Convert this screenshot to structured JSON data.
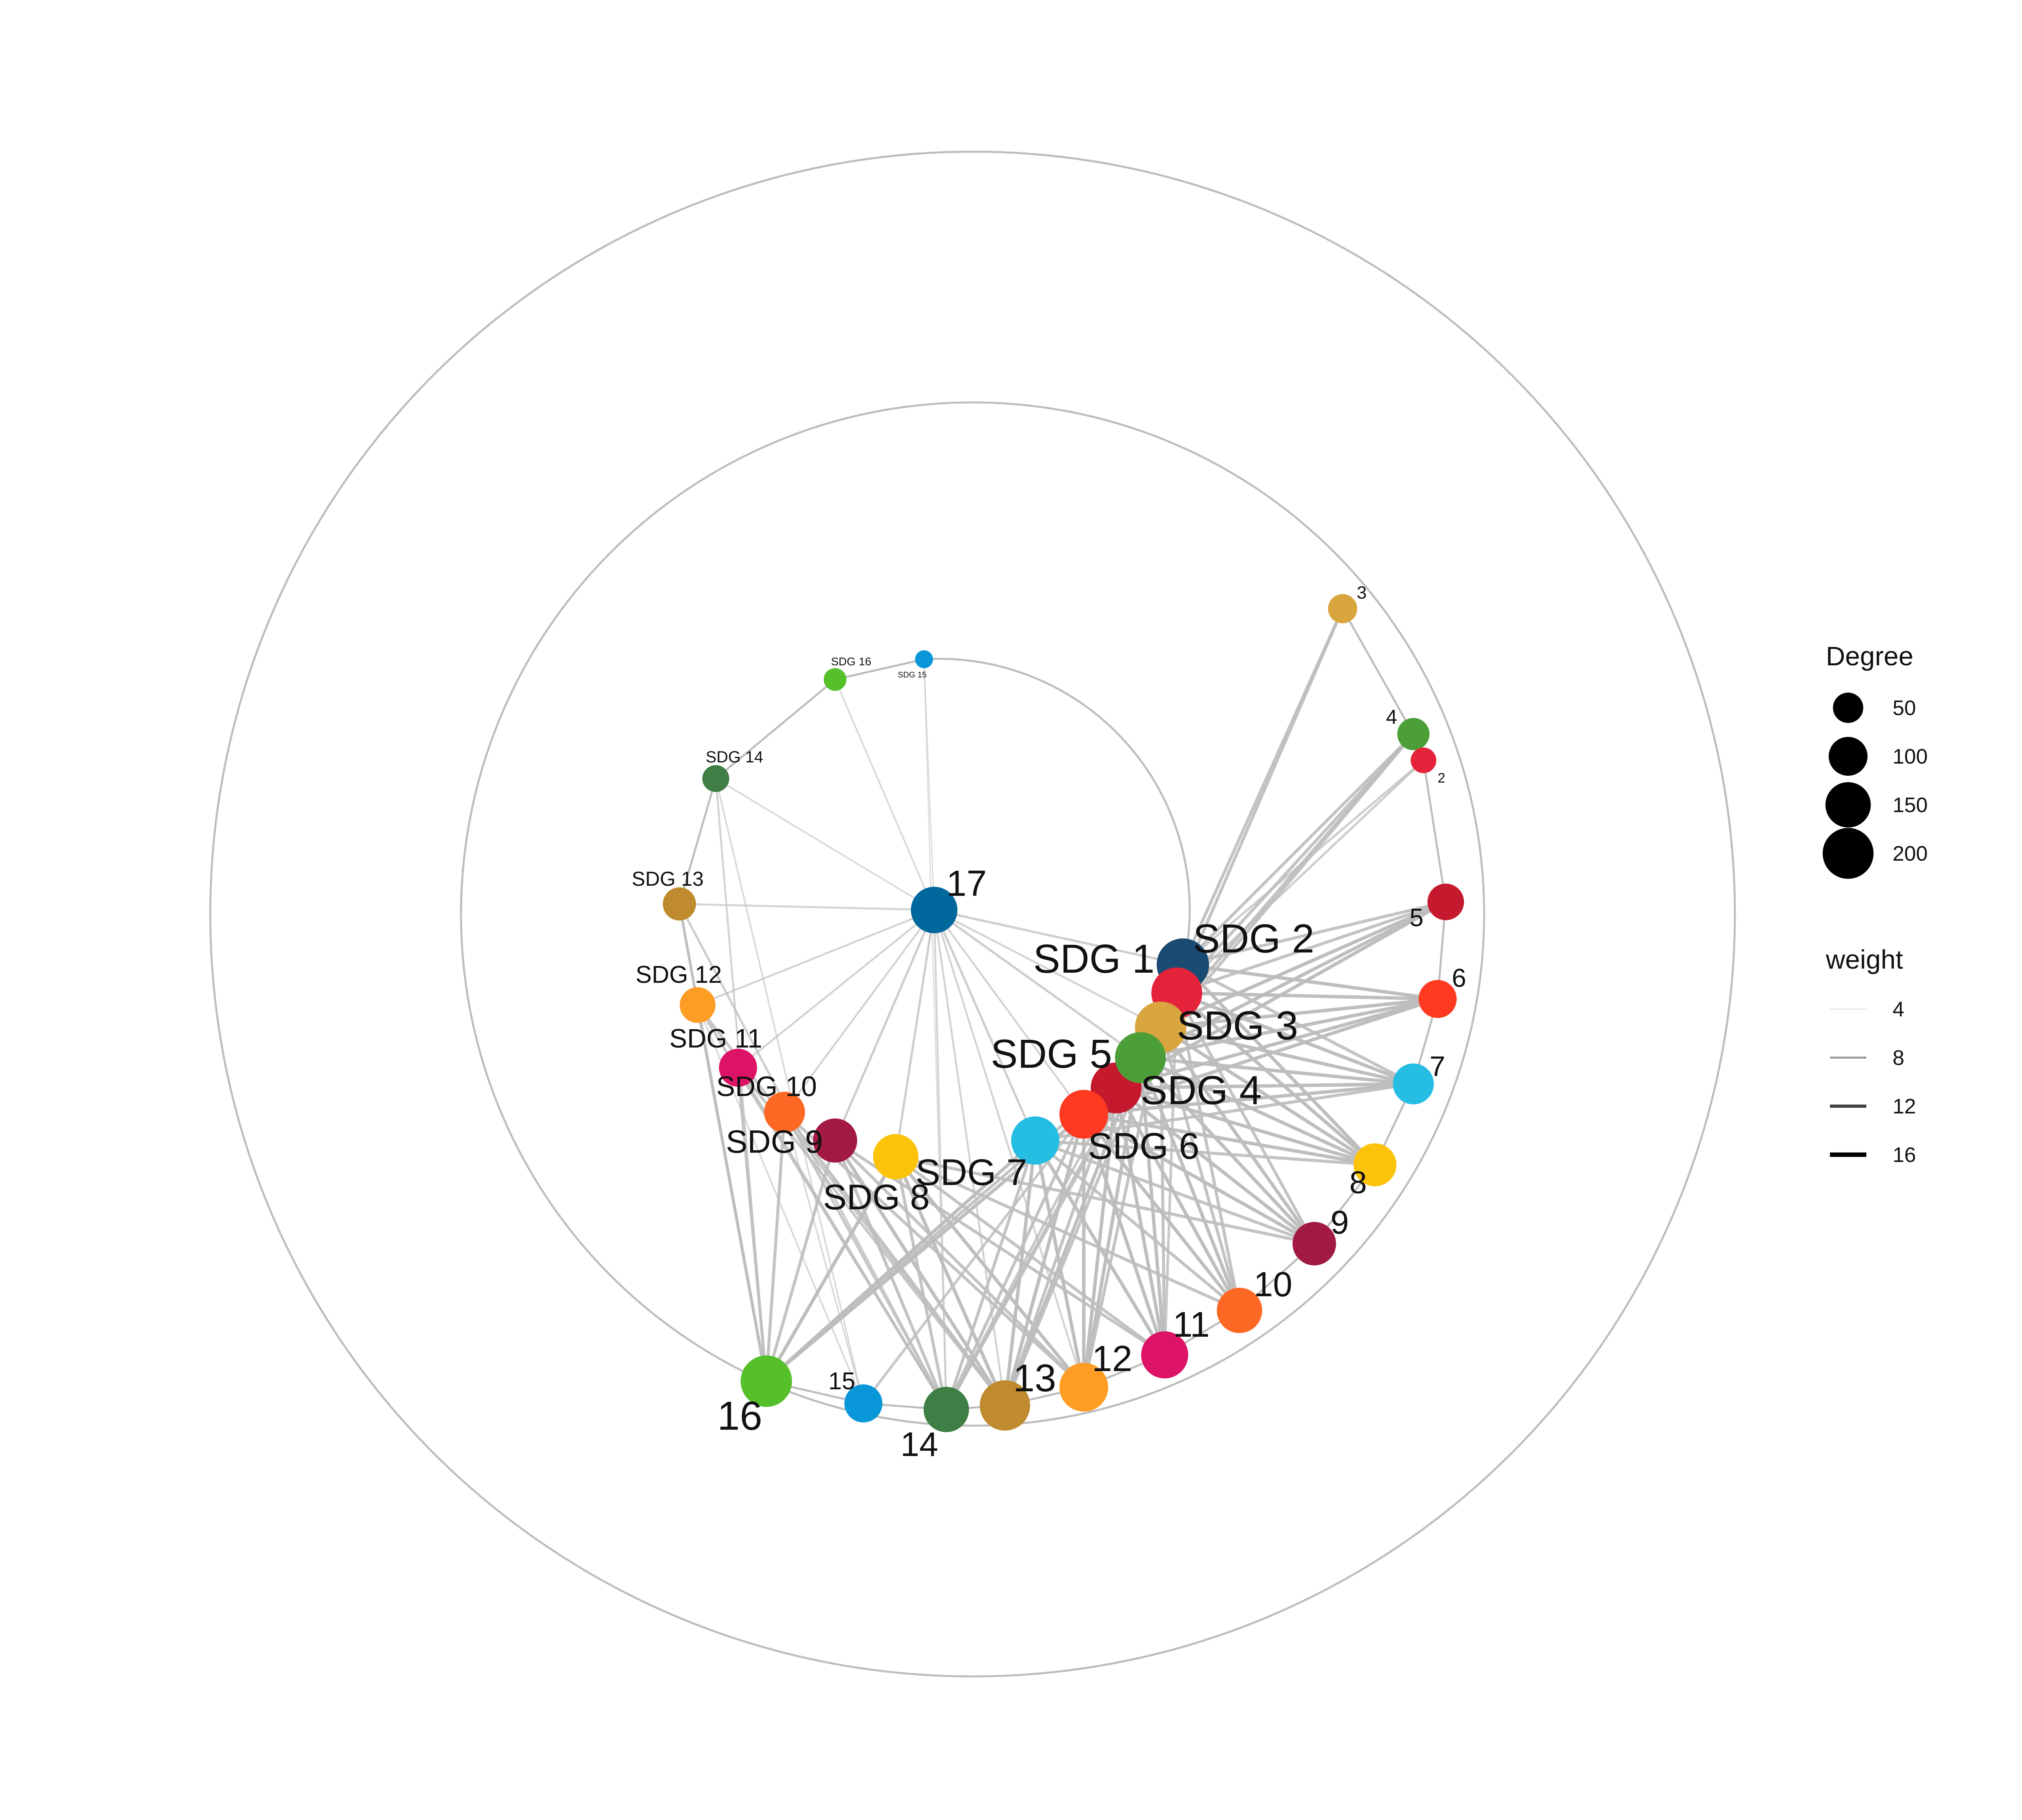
{
  "colors": {
    "edge": "#bdbdbd",
    "ring": "#bdbdbd",
    "background": "#ffffff"
  },
  "nodes": [
    {
      "id": "SDG 1",
      "label": "SDG 1",
      "color": "#1a4b73",
      "degree": 215
    },
    {
      "id": "SDG 2",
      "label": "SDG 2",
      "color": "#e5243b",
      "degree": 200
    },
    {
      "id": "SDG 3",
      "label": "SDG 3",
      "color": "#d9a53f",
      "degree": 205
    },
    {
      "id": "SDG 4",
      "label": "SDG 4",
      "color": "#c5192d",
      "degree": 200
    },
    {
      "id": "SDG 5",
      "label": "SDG 5",
      "color": "#4c9f38",
      "degree": 200
    },
    {
      "id": "SDG 6",
      "label": "SDG 6",
      "color": "#ff3a21",
      "degree": 180
    },
    {
      "id": "SDG 7",
      "label": "SDG 7",
      "color": "#26bde2",
      "degree": 175
    },
    {
      "id": "SDG 8",
      "label": "SDG 8",
      "color": "#fcc30b",
      "degree": 150
    },
    {
      "id": "SDG 9",
      "label": "SDG 9",
      "color": "#a21942",
      "degree": 140
    },
    {
      "id": "SDG 10",
      "label": "SDG 10",
      "color": "#fd6925",
      "degree": 115
    },
    {
      "id": "SDG 11",
      "label": "SDG 11",
      "color": "#dd1367",
      "degree": 95
    },
    {
      "id": "SDG 12",
      "label": "SDG 12",
      "color": "#fd9d24",
      "degree": 80
    },
    {
      "id": "SDG 13",
      "label": "SDG 13",
      "color": "#bf8b2e",
      "degree": 65
    },
    {
      "id": "SDG 14",
      "label": "SDG 14",
      "color": "#3f7e44",
      "degree": 35
    },
    {
      "id": "SDG 16",
      "label": "SDG 16",
      "color": "#56c02b",
      "degree": 20
    },
    {
      "id": "SDG 15",
      "label": "SDG 15",
      "color": "#0a97d9",
      "degree": 8
    },
    {
      "id": "T17",
      "label": "17",
      "color": "#00689d",
      "degree": 160
    },
    {
      "id": "T3",
      "label": "3",
      "color": "#d9a53f",
      "degree": 45
    },
    {
      "id": "T4",
      "label": "4",
      "color": "#4c9f38",
      "degree": 60
    },
    {
      "id": "T2",
      "label": "2",
      "color": "#e5243b",
      "degree": 30
    },
    {
      "id": "T5",
      "label": "5",
      "color": "#c5192d",
      "degree": 85
    },
    {
      "id": "T6",
      "label": "6",
      "color": "#ff3a21",
      "degree": 95
    },
    {
      "id": "T7",
      "label": "7",
      "color": "#26bde2",
      "degree": 115
    },
    {
      "id": "T8",
      "label": "8",
      "color": "#fcc30b",
      "degree": 130
    },
    {
      "id": "T9",
      "label": "9",
      "color": "#a21942",
      "degree": 135
    },
    {
      "id": "T10",
      "label": "10",
      "color": "#fd6925",
      "degree": 150
    },
    {
      "id": "T11",
      "label": "11",
      "color": "#dd1367",
      "degree": 165
    },
    {
      "id": "T12",
      "label": "12",
      "color": "#fd9d24",
      "degree": 180
    },
    {
      "id": "T13",
      "label": "13",
      "color": "#bf8b2e",
      "degree": 195
    },
    {
      "id": "T14",
      "label": "14",
      "color": "#3f7e44",
      "degree": 150
    },
    {
      "id": "T15",
      "label": "15",
      "color": "#0a97d9",
      "degree": 95
    },
    {
      "id": "T16",
      "label": "16",
      "color": "#56c02b",
      "degree": 205
    }
  ],
  "edges": [
    [
      "SDG 1",
      "T3",
      7
    ],
    [
      "SDG 1",
      "T4",
      7
    ],
    [
      "SDG 1",
      "T2",
      5
    ],
    [
      "SDG 1",
      "T5",
      7
    ],
    [
      "SDG 1",
      "T6",
      8
    ],
    [
      "SDG 1",
      "T7",
      7
    ],
    [
      "SDG 1",
      "T8",
      8
    ],
    [
      "SDG 1",
      "T17",
      5
    ],
    [
      "SDG 2",
      "T3",
      7
    ],
    [
      "SDG 2",
      "T4",
      7
    ],
    [
      "SDG 2",
      "T2",
      5
    ],
    [
      "SDG 2",
      "T5",
      7
    ],
    [
      "SDG 2",
      "T6",
      8
    ],
    [
      "SDG 2",
      "T7",
      8
    ],
    [
      "SDG 2",
      "T8",
      8
    ],
    [
      "SDG 2",
      "T9",
      7
    ],
    [
      "SDG 2",
      "T10",
      7
    ],
    [
      "SDG 2",
      "T11",
      6
    ],
    [
      "SDG 3",
      "T4",
      7
    ],
    [
      "SDG 3",
      "T5",
      8
    ],
    [
      "SDG 3",
      "T6",
      8
    ],
    [
      "SDG 3",
      "T7",
      8
    ],
    [
      "SDG 3",
      "T8",
      8
    ],
    [
      "SDG 3",
      "T9",
      8
    ],
    [
      "SDG 3",
      "T10",
      7
    ],
    [
      "SDG 3",
      "T11",
      7
    ],
    [
      "SDG 3",
      "T12",
      7
    ],
    [
      "SDG 3",
      "T13",
      7
    ],
    [
      "SDG 3",
      "T14",
      6
    ],
    [
      "SDG 4",
      "T4",
      7
    ],
    [
      "SDG 4",
      "T5",
      8
    ],
    [
      "SDG 4",
      "T6",
      8
    ],
    [
      "SDG 4",
      "T7",
      8
    ],
    [
      "SDG 4",
      "T8",
      8
    ],
    [
      "SDG 4",
      "T9",
      8
    ],
    [
      "SDG 4",
      "T10",
      8
    ],
    [
      "SDG 4",
      "T11",
      8
    ],
    [
      "SDG 4",
      "T12",
      8
    ],
    [
      "SDG 4",
      "T13",
      7
    ],
    [
      "SDG 4",
      "T14",
      6
    ],
    [
      "SDG 4",
      "T16",
      7
    ],
    [
      "SDG 5",
      "T5",
      8
    ],
    [
      "SDG 5",
      "T6",
      8
    ],
    [
      "SDG 5",
      "T7",
      8
    ],
    [
      "SDG 5",
      "T8",
      8
    ],
    [
      "SDG 5",
      "T9",
      8
    ],
    [
      "SDG 5",
      "T10",
      8
    ],
    [
      "SDG 5",
      "T11",
      8
    ],
    [
      "SDG 5",
      "T12",
      8
    ],
    [
      "SDG 5",
      "T13",
      8
    ],
    [
      "SDG 5",
      "T14",
      7
    ],
    [
      "SDG 5",
      "T16",
      7
    ],
    [
      "SDG 5",
      "T17",
      5
    ],
    [
      "SDG 6",
      "T6",
      8
    ],
    [
      "SDG 6",
      "T7",
      8
    ],
    [
      "SDG 6",
      "T8",
      8
    ],
    [
      "SDG 6",
      "T9",
      8
    ],
    [
      "SDG 6",
      "T10",
      8
    ],
    [
      "SDG 6",
      "T11",
      8
    ],
    [
      "SDG 6",
      "T12",
      8
    ],
    [
      "SDG 6",
      "T13",
      8
    ],
    [
      "SDG 6",
      "T14",
      7
    ],
    [
      "SDG 6",
      "T15",
      6
    ],
    [
      "SDG 6",
      "T16",
      7
    ],
    [
      "SDG 7",
      "T7",
      7
    ],
    [
      "SDG 7",
      "T8",
      7
    ],
    [
      "SDG 7",
      "T9",
      7
    ],
    [
      "SDG 7",
      "T10",
      7
    ],
    [
      "SDG 7",
      "T11",
      8
    ],
    [
      "SDG 7",
      "T12",
      8
    ],
    [
      "SDG 7",
      "T13",
      8
    ],
    [
      "SDG 7",
      "T14",
      7
    ],
    [
      "SDG 7",
      "T16",
      8
    ],
    [
      "SDG 7",
      "T17",
      5
    ],
    [
      "SDG 8",
      "T9",
      7
    ],
    [
      "SDG 8",
      "T10",
      7
    ],
    [
      "SDG 8",
      "T11",
      7
    ],
    [
      "SDG 8",
      "T12",
      8
    ],
    [
      "SDG 8",
      "T13",
      8
    ],
    [
      "SDG 8",
      "T14",
      7
    ],
    [
      "SDG 8",
      "T16",
      8
    ],
    [
      "SDG 8",
      "T17",
      5
    ],
    [
      "SDG 9",
      "T11",
      7
    ],
    [
      "SDG 9",
      "T12",
      7
    ],
    [
      "SDG 9",
      "T13",
      8
    ],
    [
      "SDG 9",
      "T14",
      7
    ],
    [
      "SDG 9",
      "T16",
      7
    ],
    [
      "SDG 9",
      "T17",
      5
    ],
    [
      "SDG 10",
      "T12",
      7
    ],
    [
      "SDG 10",
      "T13",
      7
    ],
    [
      "SDG 10",
      "T14",
      6
    ],
    [
      "SDG 10",
      "T15",
      3
    ],
    [
      "SDG 10",
      "T16",
      7
    ],
    [
      "SDG 10",
      "T17",
      4
    ],
    [
      "SDG 11",
      "T13",
      6
    ],
    [
      "SDG 11",
      "T14",
      6
    ],
    [
      "SDG 11",
      "T16",
      7
    ],
    [
      "SDG 11",
      "T17",
      4
    ],
    [
      "SDG 12",
      "T13",
      6
    ],
    [
      "SDG 12",
      "T14",
      6
    ],
    [
      "SDG 12",
      "T15",
      3
    ],
    [
      "SDG 12",
      "T16",
      7
    ],
    [
      "SDG 12",
      "T17",
      4
    ],
    [
      "SDG 13",
      "T14",
      5
    ],
    [
      "SDG 13",
      "T16",
      6
    ],
    [
      "SDG 13",
      "T17",
      4
    ],
    [
      "SDG 14",
      "T15",
      3
    ],
    [
      "SDG 14",
      "T16",
      4
    ],
    [
      "SDG 14",
      "T17",
      3
    ],
    [
      "SDG 16",
      "T17",
      3
    ],
    [
      "SDG 15",
      "T17",
      2
    ],
    [
      "SDG 15",
      "T14",
      2
    ],
    [
      "T17",
      "SDG 3",
      4
    ],
    [
      "T17",
      "SDG 6",
      4
    ],
    [
      "T17",
      "T13",
      4
    ],
    [
      "T17",
      "T14",
      4
    ],
    [
      "T17",
      "T12",
      4
    ]
  ],
  "legend": {
    "degree": {
      "title": "Degree",
      "items": [
        50,
        100,
        150,
        200
      ]
    },
    "weight": {
      "title": "weight",
      "items": [
        4,
        8,
        12,
        16
      ]
    }
  }
}
